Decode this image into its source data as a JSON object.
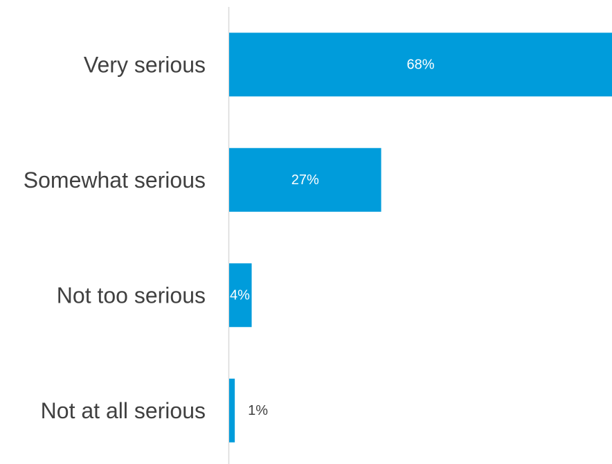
{
  "chart_data": {
    "type": "bar",
    "orientation": "horizontal",
    "title": "",
    "xlabel": "",
    "ylabel": "",
    "categories": [
      "Very serious",
      "Somewhat serious",
      "Not too serious",
      "Not at all serious"
    ],
    "values": [
      68,
      27,
      4,
      1
    ],
    "value_labels": [
      "68%",
      "27%",
      "4%",
      "1%"
    ],
    "xlim": [
      0,
      68
    ],
    "grid": false,
    "legend": "none",
    "colors": {
      "bar": "#009CDB",
      "axis": "#D9D9D9",
      "category_text": "#404040",
      "label_inside": "#FFFFFF",
      "label_outside": "#404040"
    }
  }
}
